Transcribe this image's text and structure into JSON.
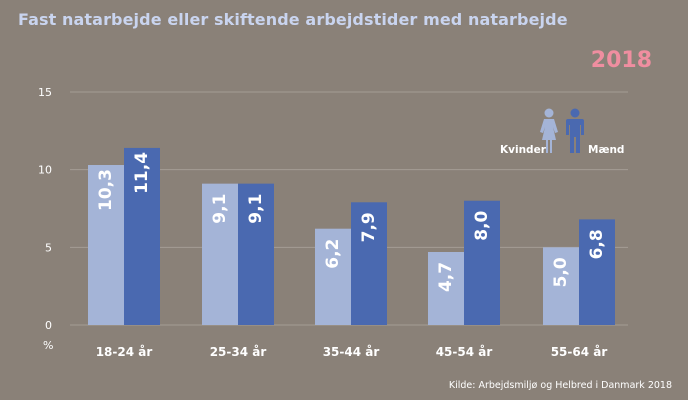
{
  "chart_data": {
    "type": "bar",
    "title": "Fast natarbejde eller skiftende arbejdstider med natarbejde",
    "subtitle": "2018",
    "ylabel": "%",
    "xlabel": "",
    "ylim": [
      0,
      15
    ],
    "yticks": [
      0,
      5,
      10,
      15
    ],
    "grid": true,
    "legend": "top-right",
    "categories": [
      "18-24 år",
      "25-34 år",
      "35-44 år",
      "45-54 år",
      "55-64 år"
    ],
    "series": [
      {
        "name": "Kvinder",
        "color": "#a4b4d7",
        "values": [
          10.3,
          9.1,
          6.2,
          4.7,
          5.0
        ],
        "labels": [
          "10,3",
          "9,1",
          "6,2",
          "4,7",
          "5,0"
        ]
      },
      {
        "name": "Mænd",
        "color": "#4a69b0",
        "values": [
          11.4,
          9.1,
          7.9,
          8.0,
          6.8
        ],
        "labels": [
          "11,4",
          "9,1",
          "7,9",
          "8,0",
          "6,8"
        ]
      }
    ],
    "source": "Kilde: Arbejdsmiljø og Helbred i Danmark 2018"
  },
  "legend_icons": {
    "kvinder": "woman-icon",
    "maend": "man-icon"
  },
  "colors": {
    "background": "#8a8178",
    "title": "#c9d4ef",
    "year": "#ef8ea0",
    "grid": "#a49d95"
  }
}
